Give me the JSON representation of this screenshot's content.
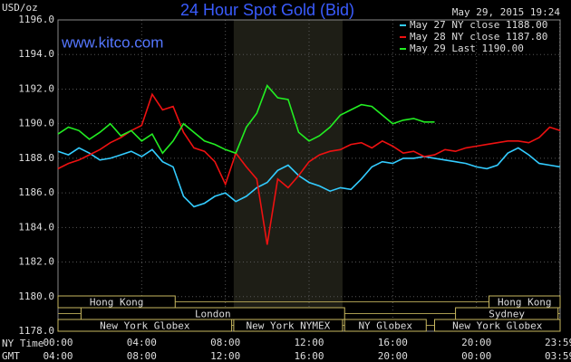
{
  "chart_data": {
    "type": "line",
    "title": "24 Hour Spot Gold (Bid)",
    "y_label": "USD/oz",
    "timestamp": "May 29, 2015 19:24",
    "watermark": "www.kitco.com",
    "x_label": "NY Time",
    "x2_label": "GMT",
    "x": [
      0,
      0.5,
      1,
      1.5,
      2,
      2.5,
      3,
      3.5,
      4,
      4.5,
      5,
      5.5,
      6,
      6.5,
      7,
      7.5,
      8,
      8.5,
      9,
      9.5,
      10,
      10.5,
      11,
      11.5,
      12,
      12.5,
      13,
      13.5,
      14,
      14.5,
      15,
      15.5,
      16,
      16.5,
      17,
      17.5,
      18,
      18.5,
      19,
      19.5,
      20,
      20.5,
      21,
      21.5,
      22,
      22.5,
      23,
      23.5,
      24
    ],
    "series": [
      {
        "name": "May 27 NY close 1188.00",
        "color": "#33ccff",
        "values": [
          1188.4,
          1188.2,
          1188.6,
          1188.3,
          1187.9,
          1188.0,
          1188.2,
          1188.4,
          1188.1,
          1188.5,
          1187.8,
          1187.5,
          1185.8,
          1185.2,
          1185.4,
          1185.8,
          1186.0,
          1185.5,
          1185.8,
          1186.3,
          1186.6,
          1187.3,
          1187.6,
          1187.0,
          1186.6,
          1186.4,
          1186.1,
          1186.3,
          1186.2,
          1186.8,
          1187.5,
          1187.8,
          1187.7,
          1188.0,
          1188.0,
          1188.1,
          1188.0,
          1187.9,
          1187.8,
          1187.7,
          1187.5,
          1187.4,
          1187.6,
          1188.3,
          1188.6,
          1188.2,
          1187.7,
          1187.6,
          1187.5
        ]
      },
      {
        "name": "May 28 NY close 1187.80",
        "color": "#ee1111",
        "values": [
          1187.4,
          1187.7,
          1187.9,
          1188.2,
          1188.5,
          1188.9,
          1189.2,
          1189.6,
          1189.9,
          1191.7,
          1190.8,
          1191.0,
          1189.5,
          1188.6,
          1188.4,
          1187.8,
          1186.5,
          1188.3,
          1187.5,
          1186.8,
          1183.0,
          1186.8,
          1186.3,
          1187.0,
          1187.8,
          1188.2,
          1188.4,
          1188.5,
          1188.8,
          1188.9,
          1188.6,
          1189.0,
          1188.7,
          1188.3,
          1188.4,
          1188.1,
          1188.2,
          1188.5,
          1188.4,
          1188.6,
          1188.7,
          1188.8,
          1188.9,
          1189.0,
          1189.0,
          1188.9,
          1189.2,
          1189.8,
          1189.6
        ]
      },
      {
        "name": "May 29 Last 1190.00",
        "color": "#22ee22",
        "values": [
          1189.4,
          1189.8,
          1189.6,
          1189.1,
          1189.5,
          1190.0,
          1189.3,
          1189.6,
          1189.0,
          1189.4,
          1188.3,
          1189.0,
          1190.0,
          1189.5,
          1189.0,
          1188.8,
          1188.5,
          1188.3,
          1189.8,
          1190.6,
          1192.2,
          1191.5,
          1191.4,
          1189.5,
          1189.0,
          1189.3,
          1189.8,
          1190.5,
          1190.8,
          1191.1,
          1191.0,
          1190.5,
          1190.0,
          1190.2,
          1190.3,
          1190.1,
          1190.1,
          null,
          null,
          null,
          null,
          null,
          null,
          null,
          null,
          null,
          null,
          null,
          null
        ]
      }
    ],
    "xlim": [
      0,
      24
    ],
    "xticks": [
      {
        "value": 0,
        "label": "00:00"
      },
      {
        "value": 4,
        "label": "04:00"
      },
      {
        "value": 8,
        "label": "08:00"
      },
      {
        "value": 12,
        "label": "12:00"
      },
      {
        "value": 16,
        "label": "16:00"
      },
      {
        "value": 20,
        "label": "20:00"
      },
      {
        "value": 23.98,
        "label": "23:59"
      }
    ],
    "x2ticks": [
      {
        "value": 0,
        "label": "04:00"
      },
      {
        "value": 4,
        "label": "08:00"
      },
      {
        "value": 8,
        "label": "12:00"
      },
      {
        "value": 12,
        "label": "16:00"
      },
      {
        "value": 16,
        "label": "20:00"
      },
      {
        "value": 20,
        "label": "00:00"
      },
      {
        "value": 23.98,
        "label": "03:59"
      }
    ],
    "ylim": [
      1178,
      1196
    ],
    "yticks": [
      {
        "value": 1178,
        "label": "1178.0"
      },
      {
        "value": 1180,
        "label": "1180.0"
      },
      {
        "value": 1182,
        "label": "1182.0"
      },
      {
        "value": 1184,
        "label": "1184.0"
      },
      {
        "value": 1186,
        "label": "1186.0"
      },
      {
        "value": 1188,
        "label": "1188.0"
      },
      {
        "value": 1190,
        "label": "1190.0"
      },
      {
        "value": 1192,
        "label": "1192.0"
      },
      {
        "value": 1194,
        "label": "1194.0"
      },
      {
        "value": 1196,
        "label": "1196.0"
      }
    ],
    "grid": true,
    "shaded": [
      8.4,
      13.6
    ],
    "session_rows": [
      [
        {
          "label": "Hong Kong",
          "start": 0,
          "end": 5.6
        },
        {
          "label": "Hong Kong",
          "start": 20.6,
          "end": 24
        }
      ],
      [
        {
          "label": "London",
          "start": 1.1,
          "end": 13.7
        },
        {
          "label": "Sydney",
          "start": 19,
          "end": 23.9
        }
      ],
      [
        {
          "label": "New York Globex",
          "start": 0,
          "end": 8.3
        },
        {
          "label": "New York NYMEX",
          "start": 8.4,
          "end": 13.6
        },
        {
          "label": "NY Globex",
          "start": 13.7,
          "end": 17.6
        },
        {
          "label": "New York Globex",
          "start": 18,
          "end": 24
        }
      ]
    ]
  }
}
